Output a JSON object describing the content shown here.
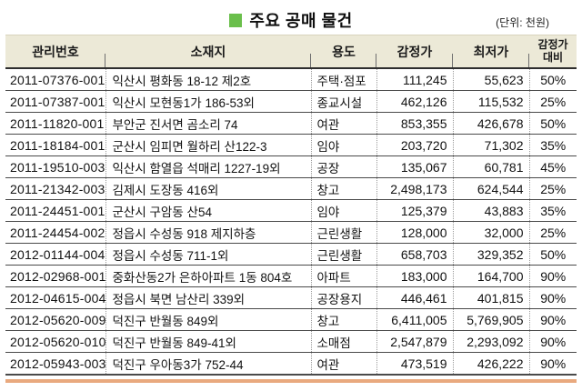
{
  "page": {
    "title": "주요 공매 물건",
    "unit_note": "(단위: 천원)",
    "accent_green": "#6abf4b",
    "header_bg": "#ece9d7",
    "bottom_line_color": "#e9a97e"
  },
  "table": {
    "columns": [
      {
        "label": "관리번호"
      },
      {
        "label": "소재지"
      },
      {
        "label": "용도"
      },
      {
        "label": "감정가"
      },
      {
        "label": "최저가"
      },
      {
        "label": "감정가",
        "label2": "대비"
      }
    ],
    "rows": [
      [
        "2011-07376-001",
        "익산시 평화동 18-12 제2호",
        "주택·점포",
        "111,245",
        "55,623",
        "50%"
      ],
      [
        "2011-07387-001",
        "익산시 모현동1가 186-53외",
        "종교시설",
        "462,126",
        "115,532",
        "25%"
      ],
      [
        "2011-11820-001",
        "부안군 진서면 곰소리 74",
        "여관",
        "853,355",
        "426,678",
        "50%"
      ],
      [
        "2011-18184-001",
        "군산시 임피면 월하리 산122-3",
        "임야",
        "203,720",
        "71,302",
        "35%"
      ],
      [
        "2011-19510-003",
        "익산시 함열읍 석매리 1227-19외",
        "공장",
        "135,067",
        "60,781",
        "45%"
      ],
      [
        "2011-21342-003",
        "김제시 도장동 416외",
        "창고",
        "2,498,173",
        "624,544",
        "25%"
      ],
      [
        "2011-24451-001",
        "군산시 구암동 산54",
        "임야",
        "125,379",
        "43,883",
        "35%"
      ],
      [
        "2011-24454-002",
        "정읍시 수성동 918 제지하층",
        "근린생활",
        "128,000",
        "32,000",
        "25%"
      ],
      [
        "2012-01144-004",
        "정읍시 수성동 711-1외",
        "근린생활",
        "658,703",
        "329,352",
        "50%"
      ],
      [
        "2012-02968-001",
        "중화산동2가 은하아파트 1동 804호",
        "아파트",
        "183,000",
        "164,700",
        "90%"
      ],
      [
        "2012-04615-004",
        "정읍시 북면 남산리 339외",
        "공장용지",
        "446,461",
        "401,815",
        "90%"
      ],
      [
        "2012-05620-009",
        "덕진구 반월동 849외",
        "창고",
        "6,411,005",
        "5,769,905",
        "90%"
      ],
      [
        "2012-05620-010",
        "덕진구 반월동 849-41외",
        "소매점",
        "2,547,879",
        "2,293,092",
        "90%"
      ],
      [
        "2012-05943-003",
        "덕진구 우아동3가 752-44",
        "여관",
        "473,519",
        "426,222",
        "90%"
      ]
    ]
  }
}
